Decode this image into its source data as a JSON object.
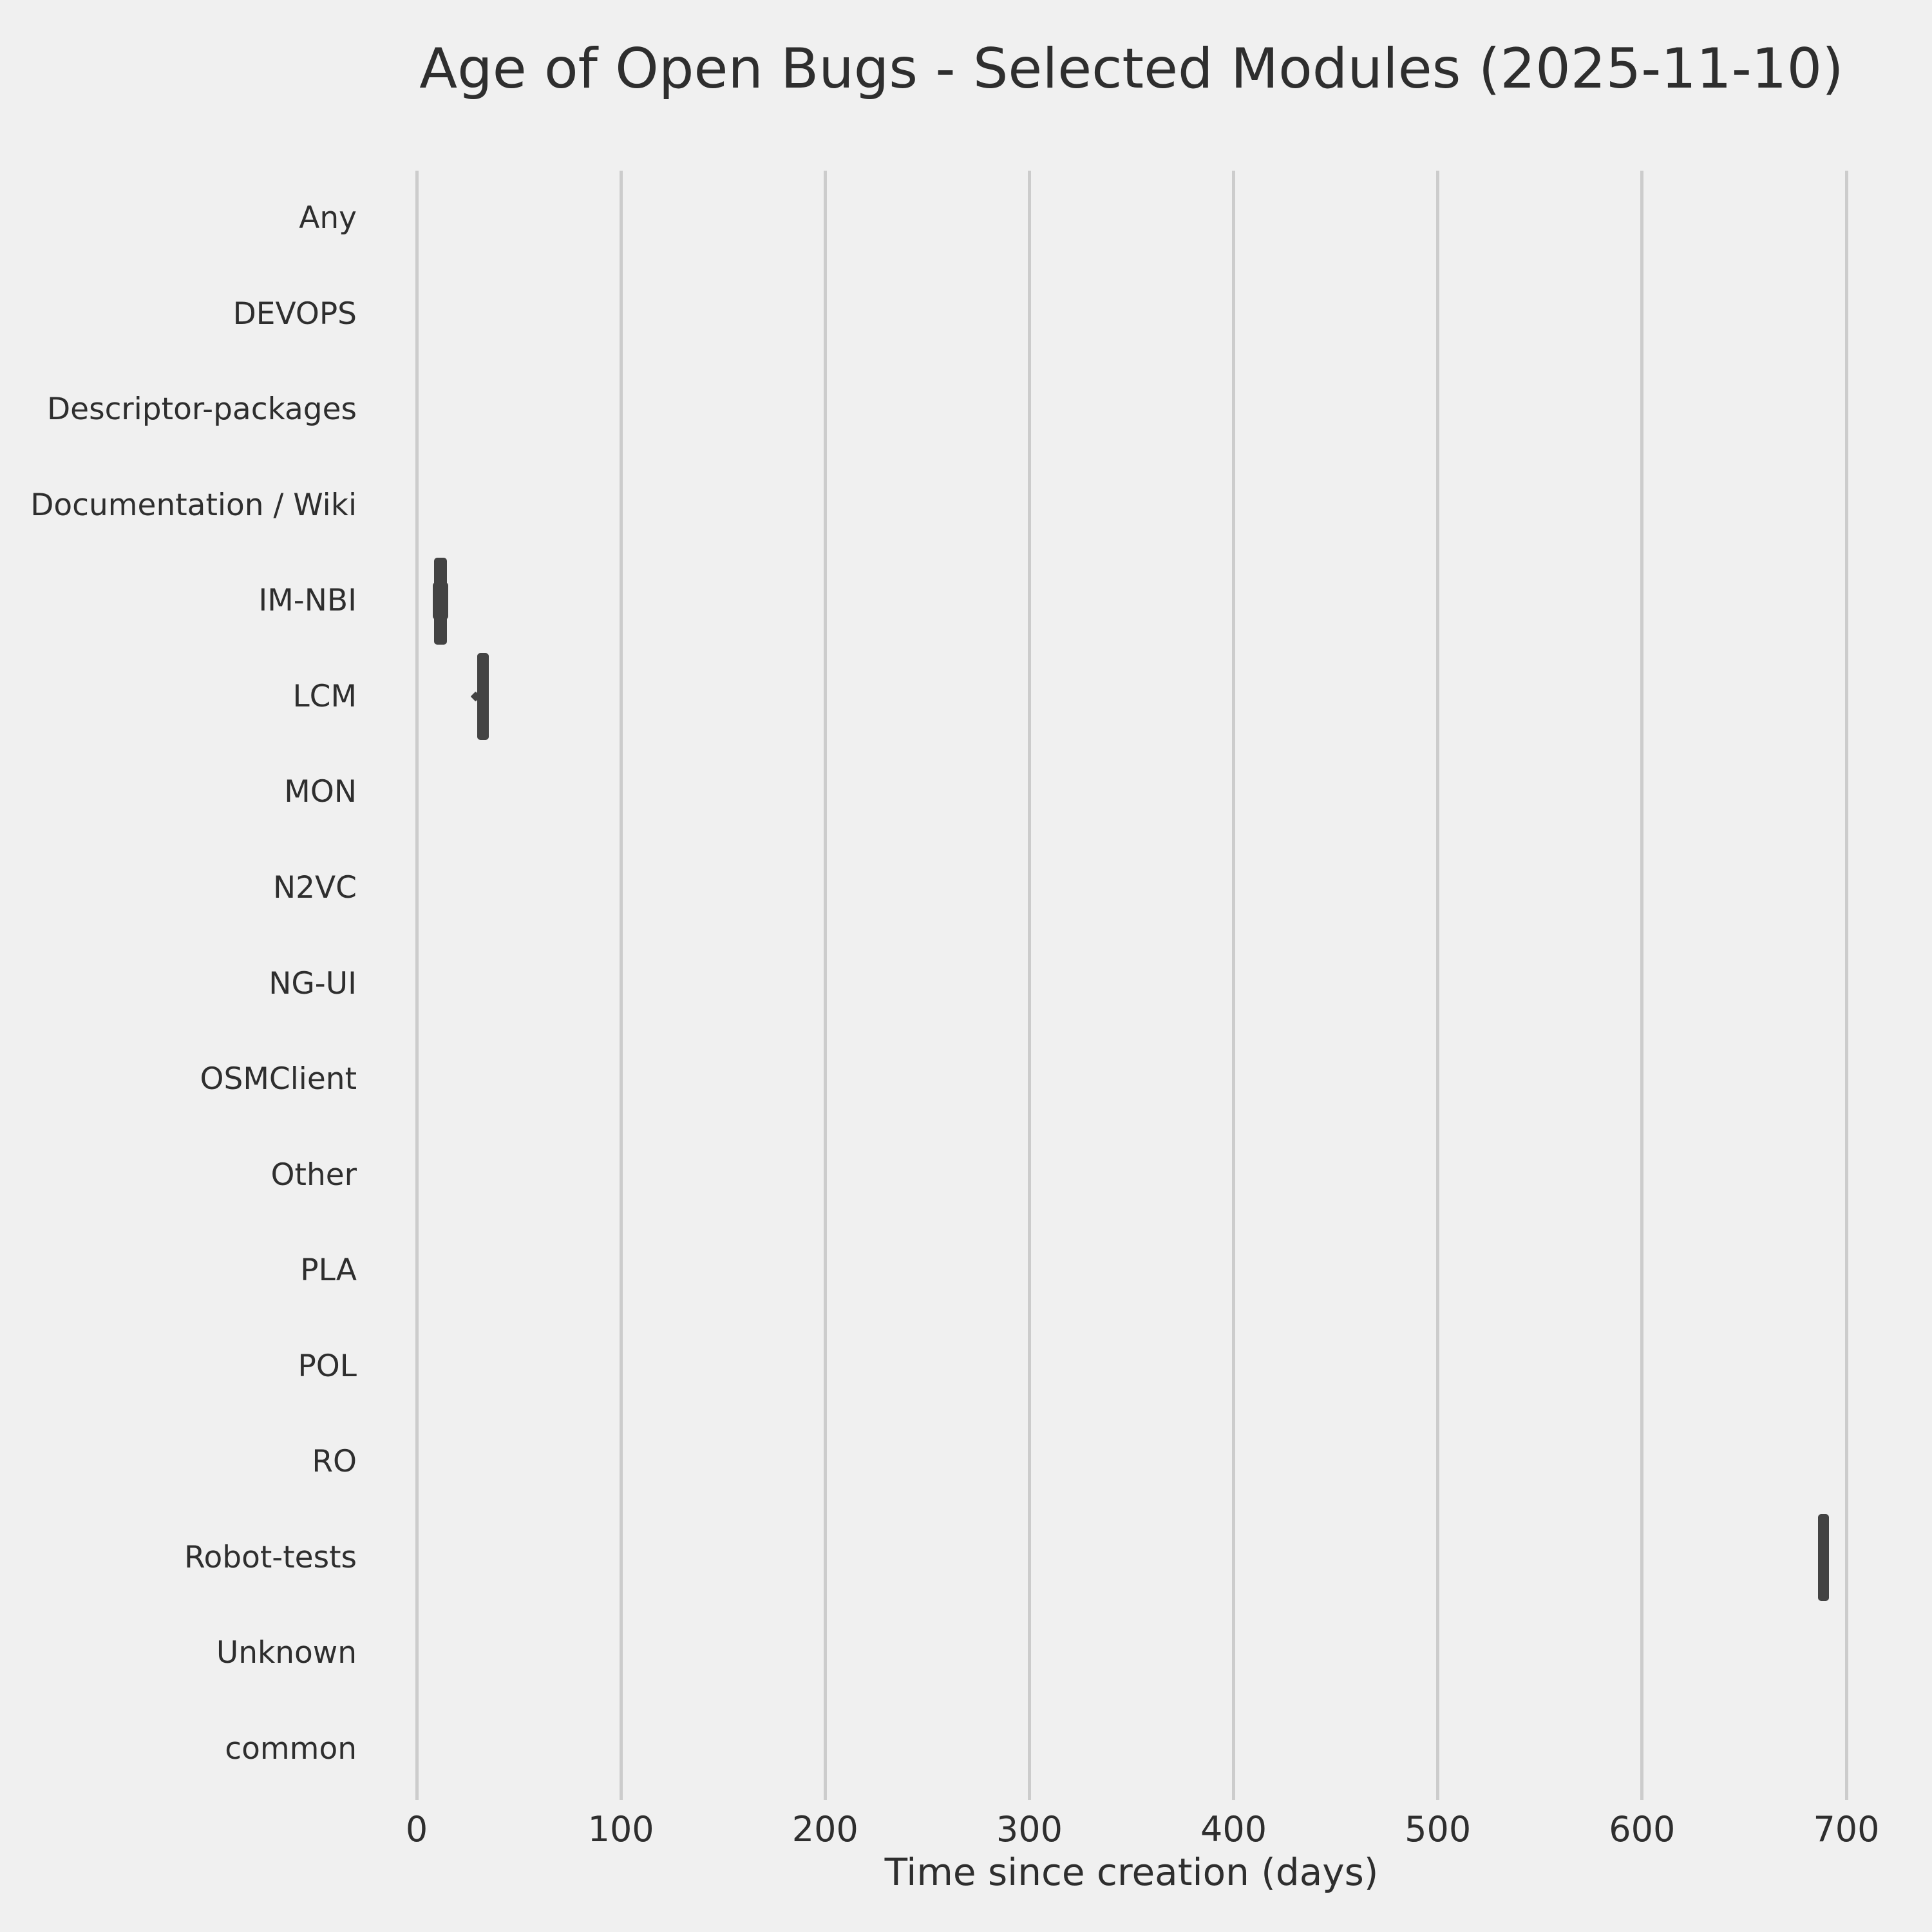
{
  "colors": {
    "background": "#f0f0f0",
    "gridline": "#cccccc",
    "mark": "#434343",
    "text": "#2e2e2e"
  },
  "chart_data": {
    "type": "box",
    "orientation": "horizontal",
    "title": "Age of Open Bugs - Selected Modules (2025-11-10)",
    "xlabel": "Time since creation (days)",
    "ylabel": "",
    "xlim": [
      0,
      700
    ],
    "x_ticks": [
      0,
      100,
      200,
      300,
      400,
      500,
      600,
      700
    ],
    "grid": "vertical-gridlines-only",
    "legend": "none",
    "categories": [
      "Any",
      "DEVOPS",
      "Descriptor-packages",
      "Documentation / Wiki",
      "IM-NBI",
      "LCM",
      "MON",
      "N2VC",
      "NG-UI",
      "OSMClient",
      "Other",
      "PLA",
      "POL",
      "RO",
      "Robot-tests",
      "Unknown",
      "common"
    ],
    "marks": [
      {
        "category": "IM-NBI",
        "low": 8.5,
        "high": 14.8,
        "band_low": 8.0,
        "band_high": 15.6
      },
      {
        "category": "LCM",
        "low": 29.7,
        "high": 35.3,
        "outlier": 29
      },
      {
        "category": "Robot-tests",
        "low": 686,
        "high": 691.5
      }
    ]
  }
}
